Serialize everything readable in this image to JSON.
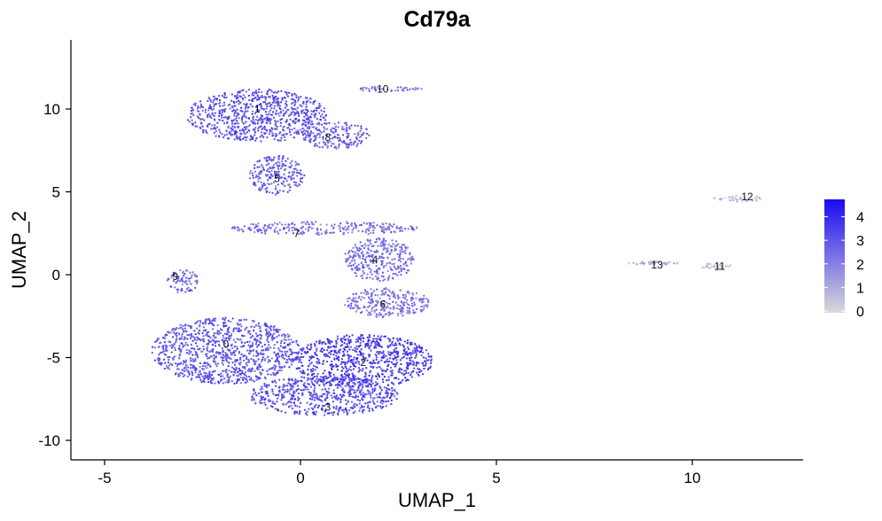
{
  "chart_data": {
    "type": "scatter",
    "title": "Cd79a",
    "xlabel": "UMAP_1",
    "ylabel": "UMAP_2",
    "xlim": [
      -6,
      12.9
    ],
    "ylim": [
      -11,
      14
    ],
    "x_ticks": [
      -5,
      0,
      5,
      10
    ],
    "y_ticks": [
      -10,
      -5,
      0,
      5,
      10
    ],
    "grid": false,
    "color_scale": {
      "min": 0,
      "max": 4.8,
      "low_color": "#d9d9d9",
      "high_color": "#1a0af2",
      "ticks": [
        0,
        1,
        2,
        3,
        4
      ],
      "legend_position": "right"
    },
    "cluster_labels": [
      {
        "label": "0",
        "x": -1.9,
        "y": -4.2
      },
      {
        "label": "1",
        "x": -1.1,
        "y": 10.0
      },
      {
        "label": "2",
        "x": 1.6,
        "y": -5.3
      },
      {
        "label": "3",
        "x": 0.7,
        "y": -8.0
      },
      {
        "label": "4",
        "x": 1.9,
        "y": 0.9
      },
      {
        "label": "5",
        "x": -0.6,
        "y": 5.8
      },
      {
        "label": "6",
        "x": 2.1,
        "y": -1.8
      },
      {
        "label": "7",
        "x": -0.1,
        "y": 2.5
      },
      {
        "label": "8",
        "x": 0.7,
        "y": 8.3
      },
      {
        "label": "9",
        "x": -3.2,
        "y": -0.1
      },
      {
        "label": "10",
        "x": 2.1,
        "y": 11.2
      },
      {
        "label": "11",
        "x": 10.7,
        "y": 0.5
      },
      {
        "label": "12",
        "x": 11.4,
        "y": 4.7
      },
      {
        "label": "13",
        "x": 9.1,
        "y": 0.6
      }
    ],
    "clusters": [
      {
        "label": "0",
        "cx": -1.9,
        "cy": -4.6,
        "rx": 1.9,
        "ry": 2.0,
        "expression": 3.0
      },
      {
        "label": "1",
        "cx": -1.1,
        "cy": 9.6,
        "rx": 1.8,
        "ry": 1.6,
        "expression": 3.1
      },
      {
        "label": "2",
        "cx": 1.6,
        "cy": -5.2,
        "rx": 1.8,
        "ry": 1.6,
        "expression": 3.6
      },
      {
        "label": "3",
        "cx": 0.6,
        "cy": -7.3,
        "rx": 1.9,
        "ry": 1.2,
        "expression": 3.2
      },
      {
        "label": "4",
        "cx": 2.0,
        "cy": 0.9,
        "rx": 0.9,
        "ry": 1.3,
        "expression": 2.5
      },
      {
        "label": "5",
        "cx": -0.6,
        "cy": 6.0,
        "rx": 0.7,
        "ry": 1.2,
        "expression": 2.8
      },
      {
        "label": "6",
        "cx": 2.2,
        "cy": -1.7,
        "rx": 1.1,
        "ry": 0.9,
        "expression": 2.4
      },
      {
        "label": "7",
        "cx": 0.6,
        "cy": 2.8,
        "rx": 2.4,
        "ry": 0.4,
        "expression": 2.4
      },
      {
        "label": "8",
        "cx": 0.9,
        "cy": 8.4,
        "rx": 0.9,
        "ry": 0.8,
        "expression": 2.8
      },
      {
        "label": "9",
        "cx": -3.0,
        "cy": -0.4,
        "rx": 0.4,
        "ry": 0.7,
        "expression": 2.6
      },
      {
        "label": "10",
        "cx": 2.2,
        "cy": 11.2,
        "rx": 0.9,
        "ry": 0.15,
        "expression": 2.4
      },
      {
        "label": "11",
        "cx": 10.6,
        "cy": 0.5,
        "rx": 0.4,
        "ry": 0.2,
        "expression": 0.3
      },
      {
        "label": "12",
        "cx": 11.2,
        "cy": 4.6,
        "rx": 0.7,
        "ry": 0.2,
        "expression": 0.6
      },
      {
        "label": "13",
        "cx": 9.0,
        "cy": 0.7,
        "rx": 0.7,
        "ry": 0.1,
        "expression": 0.9
      }
    ]
  }
}
